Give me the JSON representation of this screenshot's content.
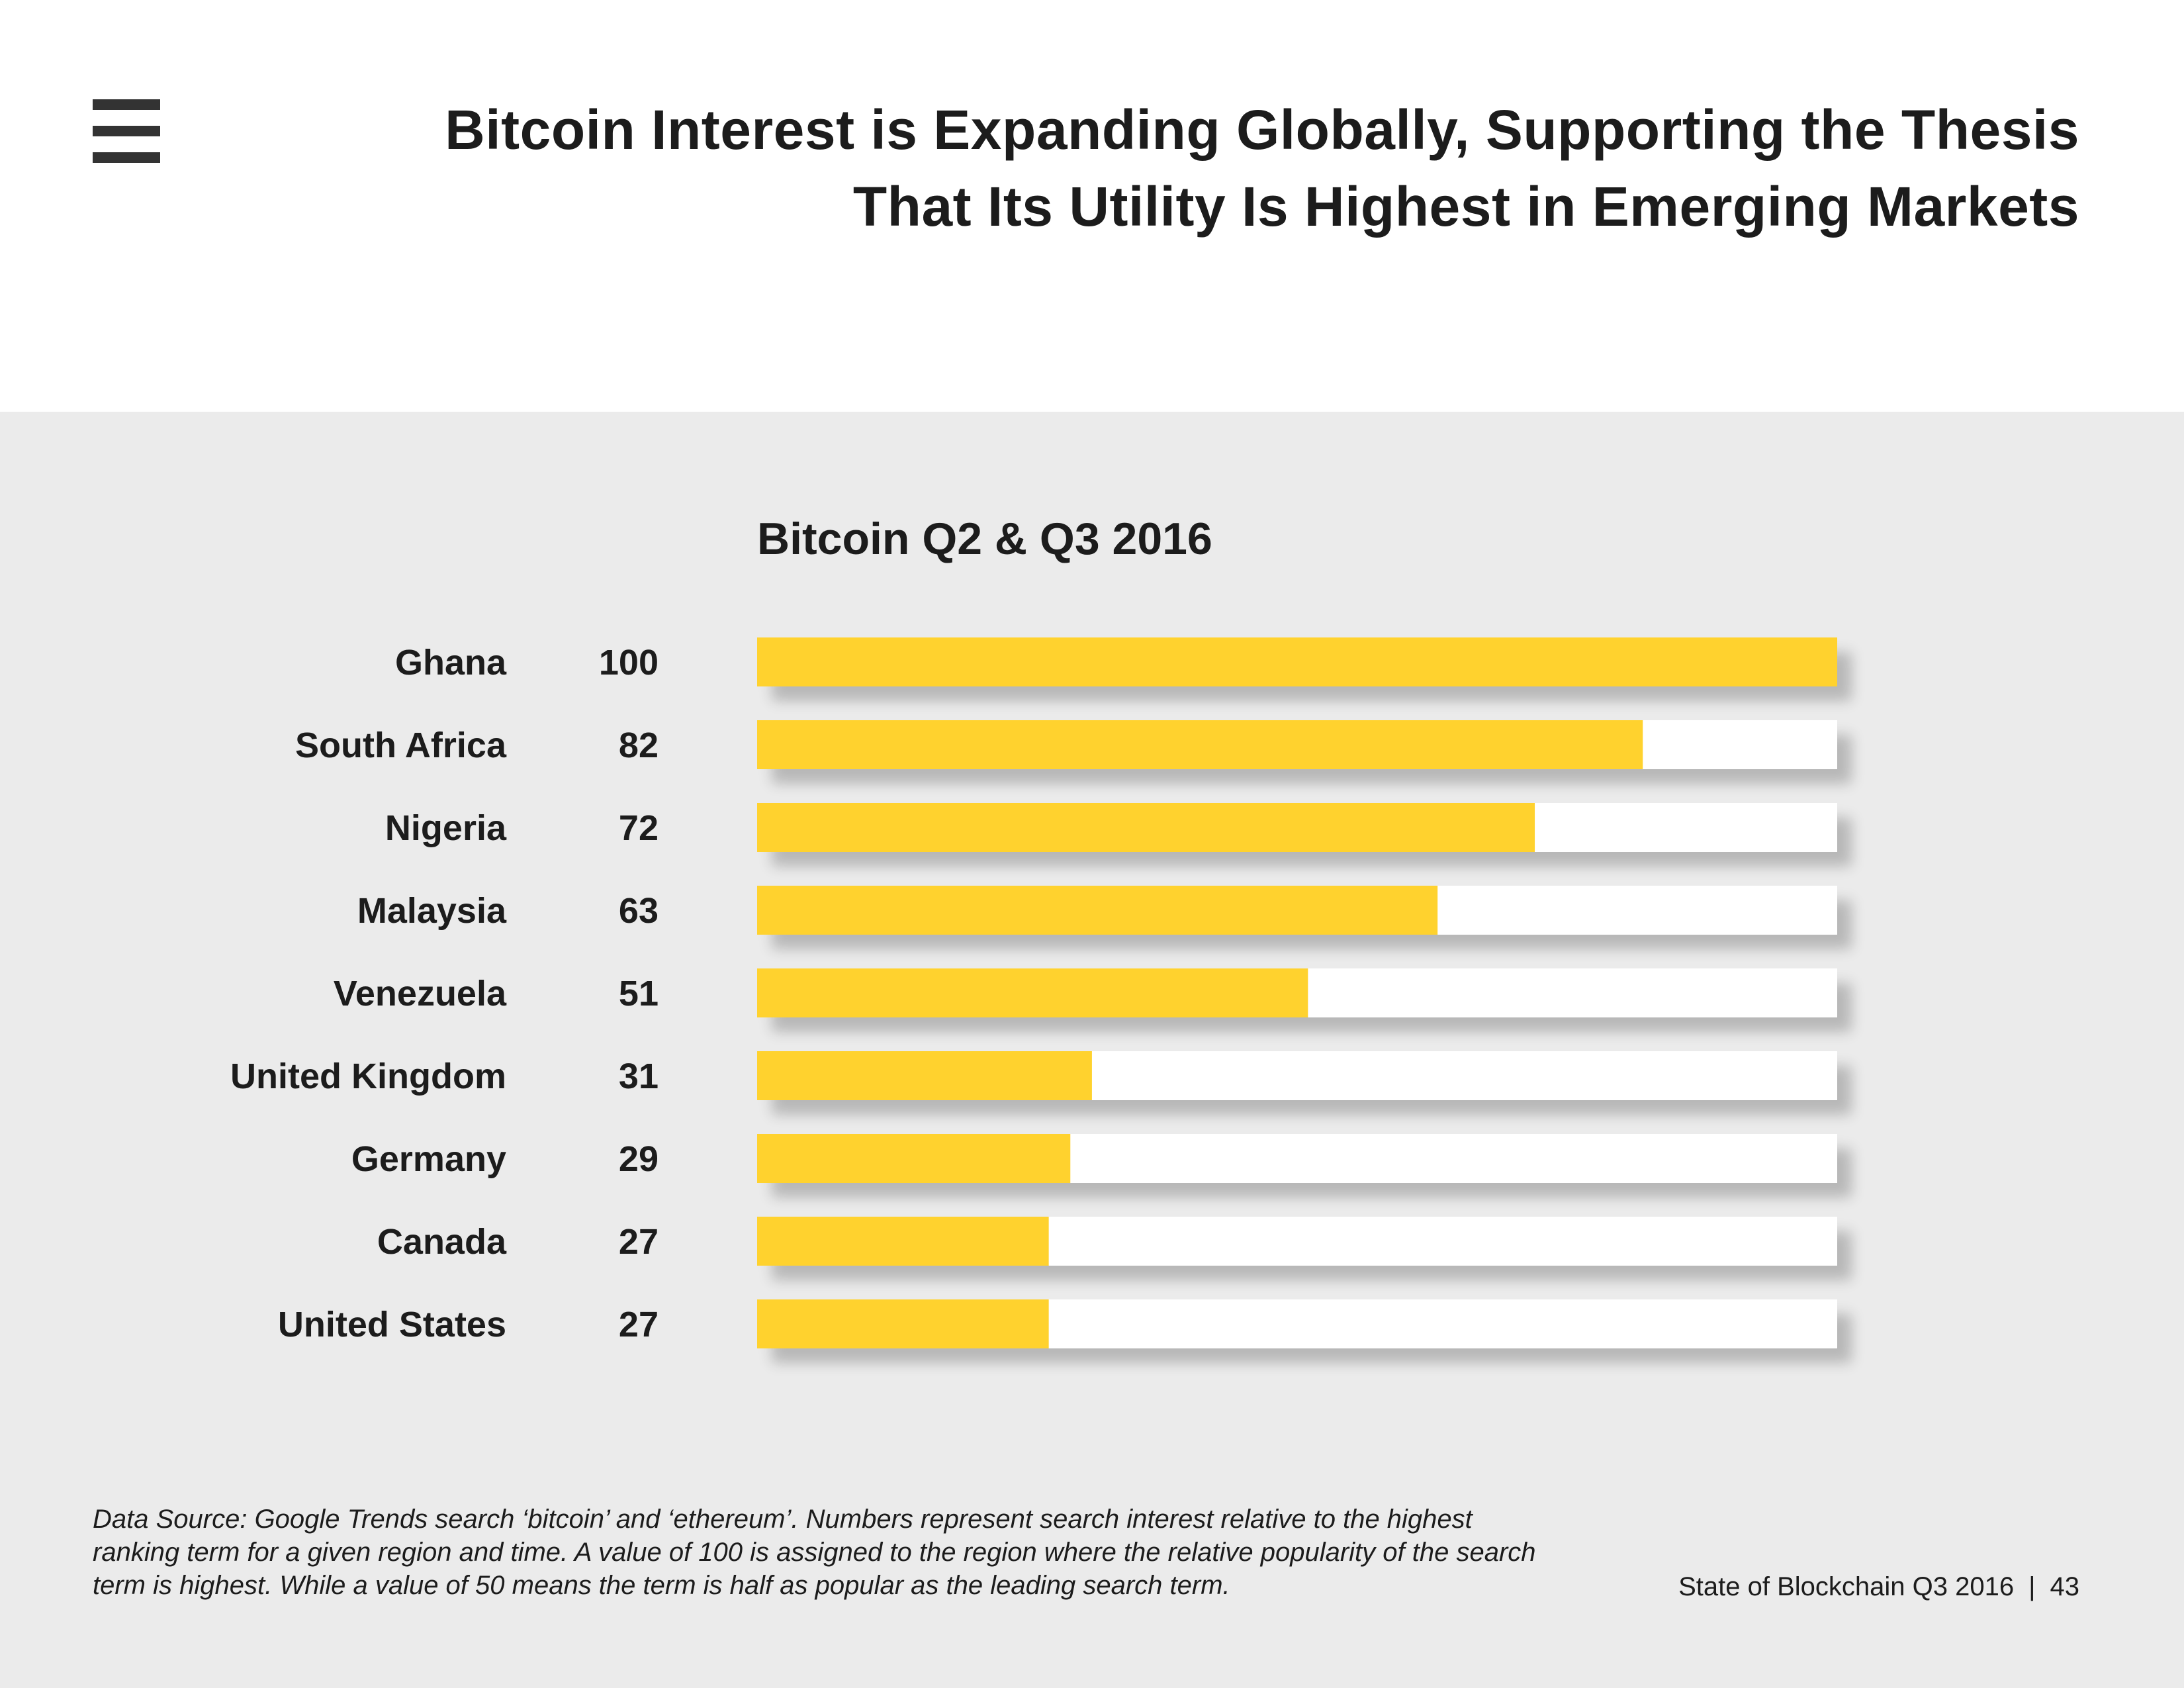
{
  "header": {
    "menu_icon": "menu-icon",
    "title": "Bitcoin Interest is Expanding Globally, Supporting the Thesis That Its Utility Is Highest in Emerging Markets"
  },
  "chart_data": {
    "type": "bar",
    "orientation": "horizontal",
    "title": "Bitcoin Q2 & Q3 2016",
    "categories": [
      "Ghana",
      "South Africa",
      "Nigeria",
      "Malaysia",
      "Venezuela",
      "United Kingdom",
      "Germany",
      "Canada",
      "United States"
    ],
    "values": [
      100,
      82,
      72,
      63,
      51,
      31,
      29,
      27,
      27
    ],
    "xlim": [
      0,
      100
    ],
    "xlabel": "",
    "ylabel": "",
    "grid": false,
    "legend": "none",
    "bar_color": "#ffd22e",
    "track_color": "#ffffff"
  },
  "footnote": "Data Source: Google Trends search ‘bitcoin’ and ‘ethereum’. Numbers represent search interest relative to the highest ranking term for a given region and time. A value of 100 is assigned to the region where the relative popularity of the search term is highest. While a value of 50 means the term is half as popular as the leading search term.",
  "footer": {
    "report": "State of Blockchain Q3 2016",
    "separator": "|",
    "page_number": "43"
  },
  "colors": {
    "panel_background": "#ebebeb",
    "text": "#1c1c1c",
    "accent": "#ffd22e"
  }
}
